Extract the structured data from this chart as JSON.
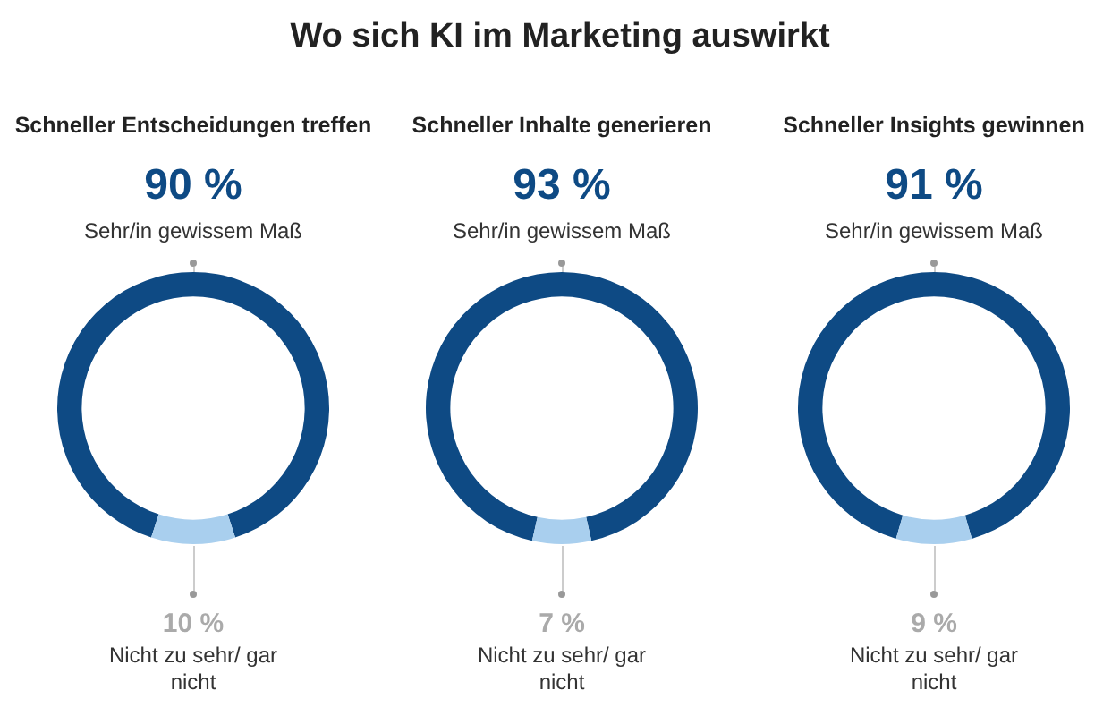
{
  "chart_data": [
    {
      "type": "other",
      "title": "Wo sich KI im Marketing auswirkt"
    },
    {
      "type": "donut",
      "title": "Schneller Entscheidungen treffen",
      "categories": [
        "Sehr/in gewissem Maß",
        "Nicht zu sehr/ gar nicht"
      ],
      "values": [
        90,
        10
      ],
      "value_labels": [
        "90 %",
        "10 %"
      ],
      "colors": [
        "#0e4a84",
        "#a9cfee"
      ],
      "legend": false
    },
    {
      "type": "donut",
      "title": "Schneller Inhalte generieren",
      "categories": [
        "Sehr/in gewissem Maß",
        "Nicht zu sehr/ gar nicht"
      ],
      "values": [
        93,
        7
      ],
      "value_labels": [
        "93 %",
        "7 %"
      ],
      "colors": [
        "#0e4a84",
        "#a9cfee"
      ],
      "legend": false
    },
    {
      "type": "donut",
      "title": "Schneller Insights gewinnen",
      "categories": [
        "Sehr/in gewissem Maß",
        "Nicht zu sehr/ gar nicht"
      ],
      "values": [
        91,
        9
      ],
      "value_labels": [
        "91 %",
        "9 %"
      ],
      "colors": [
        "#0e4a84",
        "#a9cfee"
      ],
      "legend": false
    }
  ]
}
